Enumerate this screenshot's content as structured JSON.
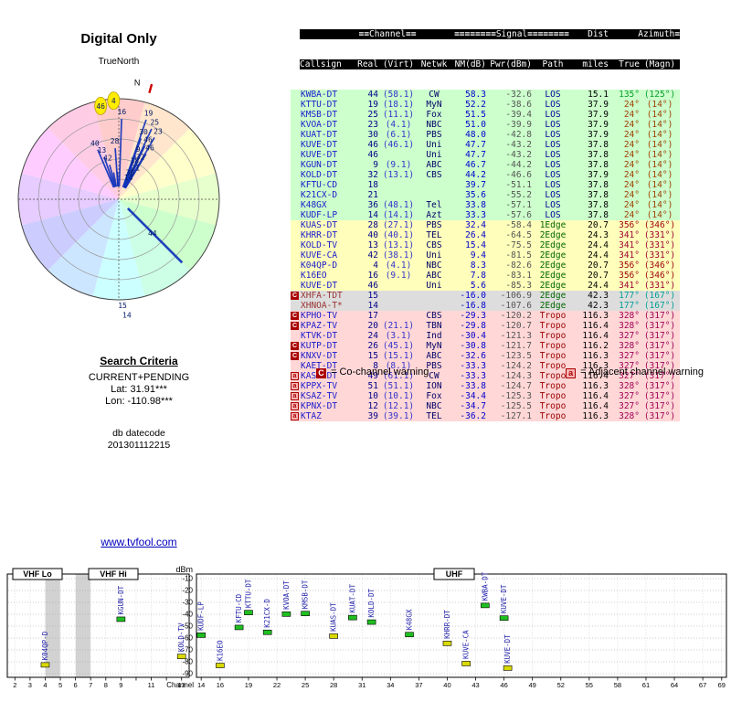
{
  "header": {
    "title": "Digital Only",
    "north": "TrueNorth",
    "compass_mark": "N"
  },
  "search": {
    "heading": "Search Criteria",
    "mode": "CURRENT+PENDING",
    "lat": "Lat: 31.91***",
    "lon": "Lon: -110.98***"
  },
  "datecode": {
    "label": "db datecode",
    "value": "201301112215"
  },
  "footer": {
    "link": "www.tvfool.com"
  },
  "legend": {
    "co_symbol": "C",
    "co_text": "= Co-channel warning",
    "adj_symbol": "a",
    "adj_text": "= Adjacent channel warning"
  },
  "colors": {
    "accent": "#0000bb",
    "tier_green": "#ccffcc",
    "tier_yellow": "#ffffbb",
    "tier_gray": "#dddddd",
    "tier_pink": "#ffd7d7",
    "bar_green": "#1fbf1f",
    "bar_yellow": "#d9d900",
    "warn_co": "#aa0000",
    "warn_adj": "#f9b4b4",
    "line_blue": "#1133bb",
    "north_red": "#cc0000"
  },
  "table": {
    "h1": {
      "channel": "≡≡Channel≡≡",
      "signal": "≡≡≡≡≡≡≡≡Signal≡≡≡≡≡≡≡≡",
      "dist": "Dist",
      "azimuth": "Azimuth≡"
    },
    "h2": {
      "callsign": "Callsign",
      "real": "Real",
      "virt": "(Virt)",
      "netwk": "Netwk",
      "nm": "NM(dB)",
      "pwr": "Pwr(dBm)",
      "path": "Path",
      "miles": "miles",
      "true": "True",
      "magn": "(Magn)"
    },
    "rows": [
      {
        "cs": "KWBA-DT",
        "real": "44",
        "virt": "(58.1)",
        "net": "CW",
        "nm": "58.3",
        "pwr": "-32.6",
        "path": "LOS",
        "dist": "15.1",
        "azt": "135°",
        "azm": "(125°)",
        "az": 135,
        "tier": "green",
        "mark": ""
      },
      {
        "cs": "KTTU-DT",
        "real": "19",
        "virt": "(18.1)",
        "net": "MyN",
        "nm": "52.2",
        "pwr": "-38.6",
        "path": "LOS",
        "dist": "37.9",
        "azt": "24°",
        "azm": "(14°)",
        "az": 24,
        "tier": "green",
        "mark": ""
      },
      {
        "cs": "KMSB-DT",
        "real": "25",
        "virt": "(11.1)",
        "net": "Fox",
        "nm": "51.5",
        "pwr": "-39.4",
        "path": "LOS",
        "dist": "37.9",
        "azt": "24°",
        "azm": "(14°)",
        "az": 24,
        "tier": "green",
        "mark": ""
      },
      {
        "cs": "KVOA-DT",
        "real": "23",
        "virt": "(4.1)",
        "net": "NBC",
        "nm": "51.0",
        "pwr": "-39.9",
        "path": "LOS",
        "dist": "37.9",
        "azt": "24°",
        "azm": "(14°)",
        "az": 24,
        "tier": "green",
        "mark": ""
      },
      {
        "cs": "KUAT-DT",
        "real": "30",
        "virt": "(6.1)",
        "net": "PBS",
        "nm": "48.0",
        "pwr": "-42.8",
        "path": "LOS",
        "dist": "37.9",
        "azt": "24°",
        "azm": "(14°)",
        "az": 24,
        "tier": "green",
        "mark": ""
      },
      {
        "cs": "KUVE-DT",
        "real": "46",
        "virt": "(46.1)",
        "net": "Uni",
        "nm": "47.7",
        "pwr": "-43.2",
        "path": "LOS",
        "dist": "37.8",
        "azt": "24°",
        "azm": "(14°)",
        "az": 24,
        "tier": "green",
        "mark": ""
      },
      {
        "cs": "KUVE-DT",
        "real": "46",
        "virt": "",
        "net": "Uni",
        "nm": "47.7",
        "pwr": "-43.2",
        "path": "LOS",
        "dist": "37.8",
        "azt": "24°",
        "azm": "(14°)",
        "az": 24,
        "tier": "green",
        "mark": ""
      },
      {
        "cs": "KGUN-DT",
        "real": "9",
        "virt": "(9.1)",
        "net": "ABC",
        "nm": "46.7",
        "pwr": "-44.2",
        "path": "LOS",
        "dist": "37.8",
        "azt": "24°",
        "azm": "(14°)",
        "az": 24,
        "tier": "green",
        "mark": ""
      },
      {
        "cs": "KOLD-DT",
        "real": "32",
        "virt": "(13.1)",
        "net": "CBS",
        "nm": "44.2",
        "pwr": "-46.6",
        "path": "LOS",
        "dist": "37.9",
        "azt": "24°",
        "azm": "(14°)",
        "az": 24,
        "tier": "green",
        "mark": ""
      },
      {
        "cs": "KFTU-CD",
        "real": "18",
        "virt": "",
        "net": "",
        "nm": "39.7",
        "pwr": "-51.1",
        "path": "LOS",
        "dist": "37.8",
        "azt": "24°",
        "azm": "(14°)",
        "az": 24,
        "tier": "green",
        "mark": ""
      },
      {
        "cs": "K21CX-D",
        "real": "21",
        "virt": "",
        "net": "",
        "nm": "35.6",
        "pwr": "-55.2",
        "path": "LOS",
        "dist": "37.8",
        "azt": "24°",
        "azm": "(14°)",
        "az": 24,
        "tier": "green",
        "mark": ""
      },
      {
        "cs": "K48GX",
        "real": "36",
        "virt": "(48.1)",
        "net": "Tel",
        "nm": "33.8",
        "pwr": "-57.1",
        "path": "LOS",
        "dist": "37.8",
        "azt": "24°",
        "azm": "(14°)",
        "az": 24,
        "tier": "green",
        "mark": ""
      },
      {
        "cs": "KUDF-LP",
        "real": "14",
        "virt": "(14.1)",
        "net": "Azt",
        "nm": "33.3",
        "pwr": "-57.6",
        "path": "LOS",
        "dist": "37.8",
        "azt": "24°",
        "azm": "(14°)",
        "az": 24,
        "tier": "green",
        "mark": ""
      },
      {
        "cs": "KUAS-DT",
        "real": "28",
        "virt": "(27.1)",
        "net": "PBS",
        "nm": "32.4",
        "pwr": "-58.4",
        "path": "1Edge",
        "dist": "20.7",
        "azt": "356°",
        "azm": "(346°)",
        "az": 356,
        "tier": "yellow",
        "mark": ""
      },
      {
        "cs": "KHRR-DT",
        "real": "40",
        "virt": "(40.1)",
        "net": "TEL",
        "nm": "26.4",
        "pwr": "-64.5",
        "path": "2Edge",
        "dist": "24.3",
        "azt": "341°",
        "azm": "(331°)",
        "az": 341,
        "tier": "yellow",
        "mark": ""
      },
      {
        "cs": "KOLD-TV",
        "real": "13",
        "virt": "(13.1)",
        "net": "CBS",
        "nm": "15.4",
        "pwr": "-75.5",
        "path": "2Edge",
        "dist": "24.4",
        "azt": "341°",
        "azm": "(331°)",
        "az": 341,
        "tier": "yellow",
        "mark": ""
      },
      {
        "cs": "KUVE-CA",
        "real": "42",
        "virt": "(38.1)",
        "net": "Uni",
        "nm": "9.4",
        "pwr": "-81.5",
        "path": "2Edge",
        "dist": "24.4",
        "azt": "341°",
        "azm": "(331°)",
        "az": 341,
        "tier": "yellow",
        "mark": ""
      },
      {
        "cs": "K04QP-D",
        "real": "4",
        "virt": "(4.1)",
        "net": "NBC",
        "nm": "8.3",
        "pwr": "-82.6",
        "path": "2Edge",
        "dist": "20.7",
        "azt": "356°",
        "azm": "(346°)",
        "az": 356,
        "tier": "yellow",
        "mark": ""
      },
      {
        "cs": "K16EO",
        "real": "16",
        "virt": "(9.1)",
        "net": "ABC",
        "nm": "7.8",
        "pwr": "-83.1",
        "path": "2Edge",
        "dist": "20.7",
        "azt": "356°",
        "azm": "(346°)",
        "az": 356,
        "tier": "yellow",
        "mark": ""
      },
      {
        "cs": "KUVE-DT",
        "real": "46",
        "virt": "",
        "net": "Uni",
        "nm": "5.6",
        "pwr": "-85.3",
        "path": "2Edge",
        "dist": "24.4",
        "azt": "341°",
        "azm": "(331°)",
        "az": 341,
        "tier": "yellow",
        "mark": ""
      },
      {
        "cs": "XHFA-TDT",
        "real": "15",
        "virt": "",
        "net": "",
        "nm": "-16.0",
        "pwr": "-106.9",
        "path": "2Edge",
        "dist": "42.3",
        "azt": "177°",
        "azm": "(167°)",
        "az": 177,
        "tier": "gray",
        "mark": "C"
      },
      {
        "cs": "XHNOA-T*",
        "real": "14",
        "virt": "",
        "net": "",
        "nm": "-16.8",
        "pwr": "-107.6",
        "path": "2Edge",
        "dist": "42.3",
        "azt": "177°",
        "azm": "(167°)",
        "az": 177,
        "tier": "gray",
        "mark": ""
      },
      {
        "cs": "KPHO-TV",
        "real": "17",
        "virt": "",
        "net": "CBS",
        "nm": "-29.3",
        "pwr": "-120.2",
        "path": "Tropo",
        "dist": "116.3",
        "azt": "328°",
        "azm": "(317°)",
        "az": 328,
        "tier": "pink",
        "mark": "C"
      },
      {
        "cs": "KPAZ-TV",
        "real": "20",
        "virt": "(21.1)",
        "net": "TBN",
        "nm": "-29.8",
        "pwr": "-120.7",
        "path": "Tropo",
        "dist": "116.4",
        "azt": "328°",
        "azm": "(317°)",
        "az": 328,
        "tier": "pink",
        "mark": "C"
      },
      {
        "cs": "KTVK-DT",
        "real": "24",
        "virt": "(3.1)",
        "net": "Ind",
        "nm": "-30.4",
        "pwr": "-121.3",
        "path": "Tropo",
        "dist": "116.4",
        "azt": "327°",
        "azm": "(317°)",
        "az": 327,
        "tier": "pink",
        "mark": ""
      },
      {
        "cs": "KUTP-DT",
        "real": "26",
        "virt": "(45.1)",
        "net": "MyN",
        "nm": "-30.8",
        "pwr": "-121.7",
        "path": "Tropo",
        "dist": "116.2",
        "azt": "328°",
        "azm": "(317°)",
        "az": 328,
        "tier": "pink",
        "mark": "C"
      },
      {
        "cs": "KNXV-DT",
        "real": "15",
        "virt": "(15.1)",
        "net": "ABC",
        "nm": "-32.6",
        "pwr": "-123.5",
        "path": "Tropo",
        "dist": "116.3",
        "azt": "327°",
        "azm": "(317°)",
        "az": 327,
        "tier": "pink",
        "mark": "C"
      },
      {
        "cs": "KAET-DT",
        "real": "8",
        "virt": "(8.1)",
        "net": "PBS",
        "nm": "-33.3",
        "pwr": "-124.2",
        "path": "Tropo",
        "dist": "116.3",
        "azt": "327°",
        "azm": "(317°)",
        "az": 327,
        "tier": "pink",
        "mark": ""
      },
      {
        "cs": "KASW-DT",
        "real": "49",
        "virt": "(61.1)",
        "net": "CW",
        "nm": "-33.3",
        "pwr": "-124.3",
        "path": "Tropo",
        "dist": "116.4",
        "azt": "327°",
        "azm": "(317°)",
        "az": 327,
        "tier": "pink",
        "mark": "a"
      },
      {
        "cs": "KPPX-TV",
        "real": "51",
        "virt": "(51.1)",
        "net": "ION",
        "nm": "-33.8",
        "pwr": "-124.7",
        "path": "Tropo",
        "dist": "116.3",
        "azt": "328°",
        "azm": "(317°)",
        "az": 328,
        "tier": "pink",
        "mark": "a"
      },
      {
        "cs": "KSAZ-TV",
        "real": "10",
        "virt": "(10.1)",
        "net": "Fox",
        "nm": "-34.4",
        "pwr": "-125.3",
        "path": "Tropo",
        "dist": "116.4",
        "azt": "327°",
        "azm": "(317°)",
        "az": 327,
        "tier": "pink",
        "mark": "a"
      },
      {
        "cs": "KPNX-DT",
        "real": "12",
        "virt": "(12.1)",
        "net": "NBC",
        "nm": "-34.7",
        "pwr": "-125.5",
        "path": "Tropo",
        "dist": "116.4",
        "azt": "327°",
        "azm": "(317°)",
        "az": 327,
        "tier": "pink",
        "mark": "a"
      },
      {
        "cs": "KTAZ",
        "real": "39",
        "virt": "(39.1)",
        "net": "TEL",
        "nm": "-36.2",
        "pwr": "-127.1",
        "path": "Tropo",
        "dist": "116.3",
        "azt": "328°",
        "azm": "(317°)",
        "az": 328,
        "tier": "pink",
        "mark": "a"
      }
    ]
  },
  "chart_data": [
    {
      "type": "radar",
      "title": "Digital Only",
      "north_label": "TrueNorth",
      "rings": 5,
      "stations": [
        {
          "ch": "19",
          "az": 24,
          "r": 100
        },
        {
          "ch": "25",
          "az": 24,
          "r": 93
        },
        {
          "ch": "23",
          "az": 24,
          "r": 86
        },
        {
          "ch": "30",
          "az": 24,
          "r": 79
        },
        {
          "ch": "46",
          "az": 24,
          "r": 73
        },
        {
          "ch": "46",
          "az": 24,
          "r": 66
        },
        {
          "ch": "9",
          "az": 24,
          "r": 59
        },
        {
          "ch": "32",
          "az": 24,
          "r": 52
        },
        {
          "ch": "18",
          "az": 24,
          "r": 46
        },
        {
          "ch": "21",
          "az": 24,
          "r": 39
        },
        {
          "ch": "36",
          "az": 24,
          "r": 32
        },
        {
          "ch": "14",
          "az": 24,
          "r": 26
        },
        {
          "ch": "28",
          "az": 356,
          "r": 64
        },
        {
          "ch": "4",
          "az": 356,
          "r": 108,
          "hl": true
        },
        {
          "ch": "16",
          "az": 356,
          "r": 96
        },
        {
          "ch": "40",
          "az": 341,
          "r": 67
        },
        {
          "ch": "13",
          "az": 341,
          "r": 57
        },
        {
          "ch": "42",
          "az": 341,
          "r": 47
        },
        {
          "ch": "46",
          "az": 341,
          "r": 104,
          "hl": true
        },
        {
          "ch": "44",
          "az": 135,
          "r": 52,
          "line": 98
        },
        {
          "ch": "15",
          "az": 177,
          "r": 116,
          "line": 0
        },
        {
          "ch": "14",
          "az": 177,
          "r": 127,
          "line": 0
        }
      ]
    },
    {
      "type": "scatter",
      "ylabel": "dBm",
      "xlabel": "Channel",
      "ylim": [
        -90,
        -10
      ],
      "yticks": [
        -10,
        -20,
        -30,
        -40,
        -50,
        -60,
        -70,
        -80,
        -90
      ],
      "bands": [
        {
          "label": "VHF Lo"
        },
        {
          "label": "VHF Hi"
        },
        {
          "label": "UHF"
        }
      ],
      "vhf_ticks": [
        2,
        3,
        4,
        5,
        6,
        7,
        8,
        9,
        10,
        11,
        12,
        13
      ],
      "vhf_labels": [
        2,
        3,
        4,
        5,
        6,
        7,
        8,
        9,
        11,
        13
      ],
      "uhf_ticks": [
        14,
        16,
        19,
        22,
        25,
        28,
        31,
        34,
        37,
        40,
        43,
        46,
        49,
        52,
        55,
        58,
        61,
        64,
        67,
        69
      ],
      "points": [
        {
          "callsign": "K04QP-D",
          "band": "vhf",
          "ch": 4,
          "dbm": -82.6,
          "tier": "yellow"
        },
        {
          "callsign": "KGUN-DT",
          "band": "vhf",
          "ch": 9,
          "dbm": -44.2,
          "tier": "green"
        },
        {
          "callsign": "KOLD-TV",
          "band": "vhf",
          "ch": 13,
          "dbm": -75.5,
          "tier": "yellow"
        },
        {
          "callsign": "KUDF-LP",
          "band": "uhf",
          "ch": 14,
          "dbm": -57.6,
          "tier": "green"
        },
        {
          "callsign": "K16EO",
          "band": "uhf",
          "ch": 16,
          "dbm": -83.1,
          "tier": "yellow"
        },
        {
          "callsign": "KFTU-CD",
          "band": "uhf",
          "ch": 18,
          "dbm": -51.1,
          "tier": "green"
        },
        {
          "callsign": "KTTU-DT",
          "band": "uhf",
          "ch": 19,
          "dbm": -38.6,
          "tier": "green"
        },
        {
          "callsign": "K21CX-D",
          "band": "uhf",
          "ch": 21,
          "dbm": -55.2,
          "tier": "green"
        },
        {
          "callsign": "KVOA-DT",
          "band": "uhf",
          "ch": 23,
          "dbm": -39.9,
          "tier": "green"
        },
        {
          "callsign": "KMSB-DT",
          "band": "uhf",
          "ch": 25,
          "dbm": -39.4,
          "tier": "green"
        },
        {
          "callsign": "KUAS-DT",
          "band": "uhf",
          "ch": 28,
          "dbm": -58.4,
          "tier": "yellow"
        },
        {
          "callsign": "KUAT-DT",
          "band": "uhf",
          "ch": 30,
          "dbm": -42.8,
          "tier": "green"
        },
        {
          "callsign": "KOLD-DT",
          "band": "uhf",
          "ch": 32,
          "dbm": -46.6,
          "tier": "green"
        },
        {
          "callsign": "K48GX",
          "band": "uhf",
          "ch": 36,
          "dbm": -57.1,
          "tier": "green"
        },
        {
          "callsign": "KHRR-DT",
          "band": "uhf",
          "ch": 40,
          "dbm": -64.5,
          "tier": "yellow"
        },
        {
          "callsign": "KUVE-CA",
          "band": "uhf",
          "ch": 42,
          "dbm": -81.5,
          "tier": "yellow"
        },
        {
          "callsign": "KWBA-DT",
          "band": "uhf",
          "ch": 44,
          "dbm": -32.6,
          "tier": "green"
        },
        {
          "callsign": "KUVE-DT",
          "band": "uhf",
          "ch": 46,
          "dbm": -43.2,
          "tier": "green"
        },
        {
          "callsign": "KUVE-DT",
          "band": "uhf",
          "ch": 46,
          "dbm": -85.3,
          "tier": "yellow",
          "dx": 4
        }
      ]
    }
  ]
}
